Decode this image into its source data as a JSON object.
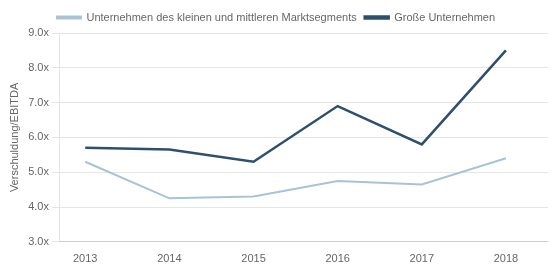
{
  "chart_data": {
    "type": "line",
    "ylabel": "Verschuldung/EBITDA",
    "x": [
      2013,
      2014,
      2015,
      2016,
      2017,
      2018
    ],
    "xlim": [
      2012.7,
      2018.5
    ],
    "xticks": [
      2013,
      2014,
      2015,
      2016,
      2017,
      2018
    ],
    "ylim": [
      3.0,
      9.0
    ],
    "yticks": [
      {
        "value": 3.0,
        "label": "3.0x"
      },
      {
        "value": 4.0,
        "label": "4.0x"
      },
      {
        "value": 5.0,
        "label": "5.0x"
      },
      {
        "value": 6.0,
        "label": "6.0x"
      },
      {
        "value": 7.0,
        "label": "7.0x"
      },
      {
        "value": 8.0,
        "label": "8.0x"
      },
      {
        "value": 9.0,
        "label": "9.0x"
      }
    ],
    "series": [
      {
        "name": "Unternehmen des kleinen und mittleren Marktsegments",
        "color": "#a8c4d4",
        "values": [
          5.3,
          4.25,
          4.3,
          4.75,
          4.65,
          5.4
        ]
      },
      {
        "name": "Große Unternehmen",
        "color": "#2e4f6e",
        "values": [
          5.7,
          5.65,
          5.3,
          6.9,
          5.8,
          8.5
        ]
      }
    ],
    "grid": "y",
    "legend": "top"
  }
}
